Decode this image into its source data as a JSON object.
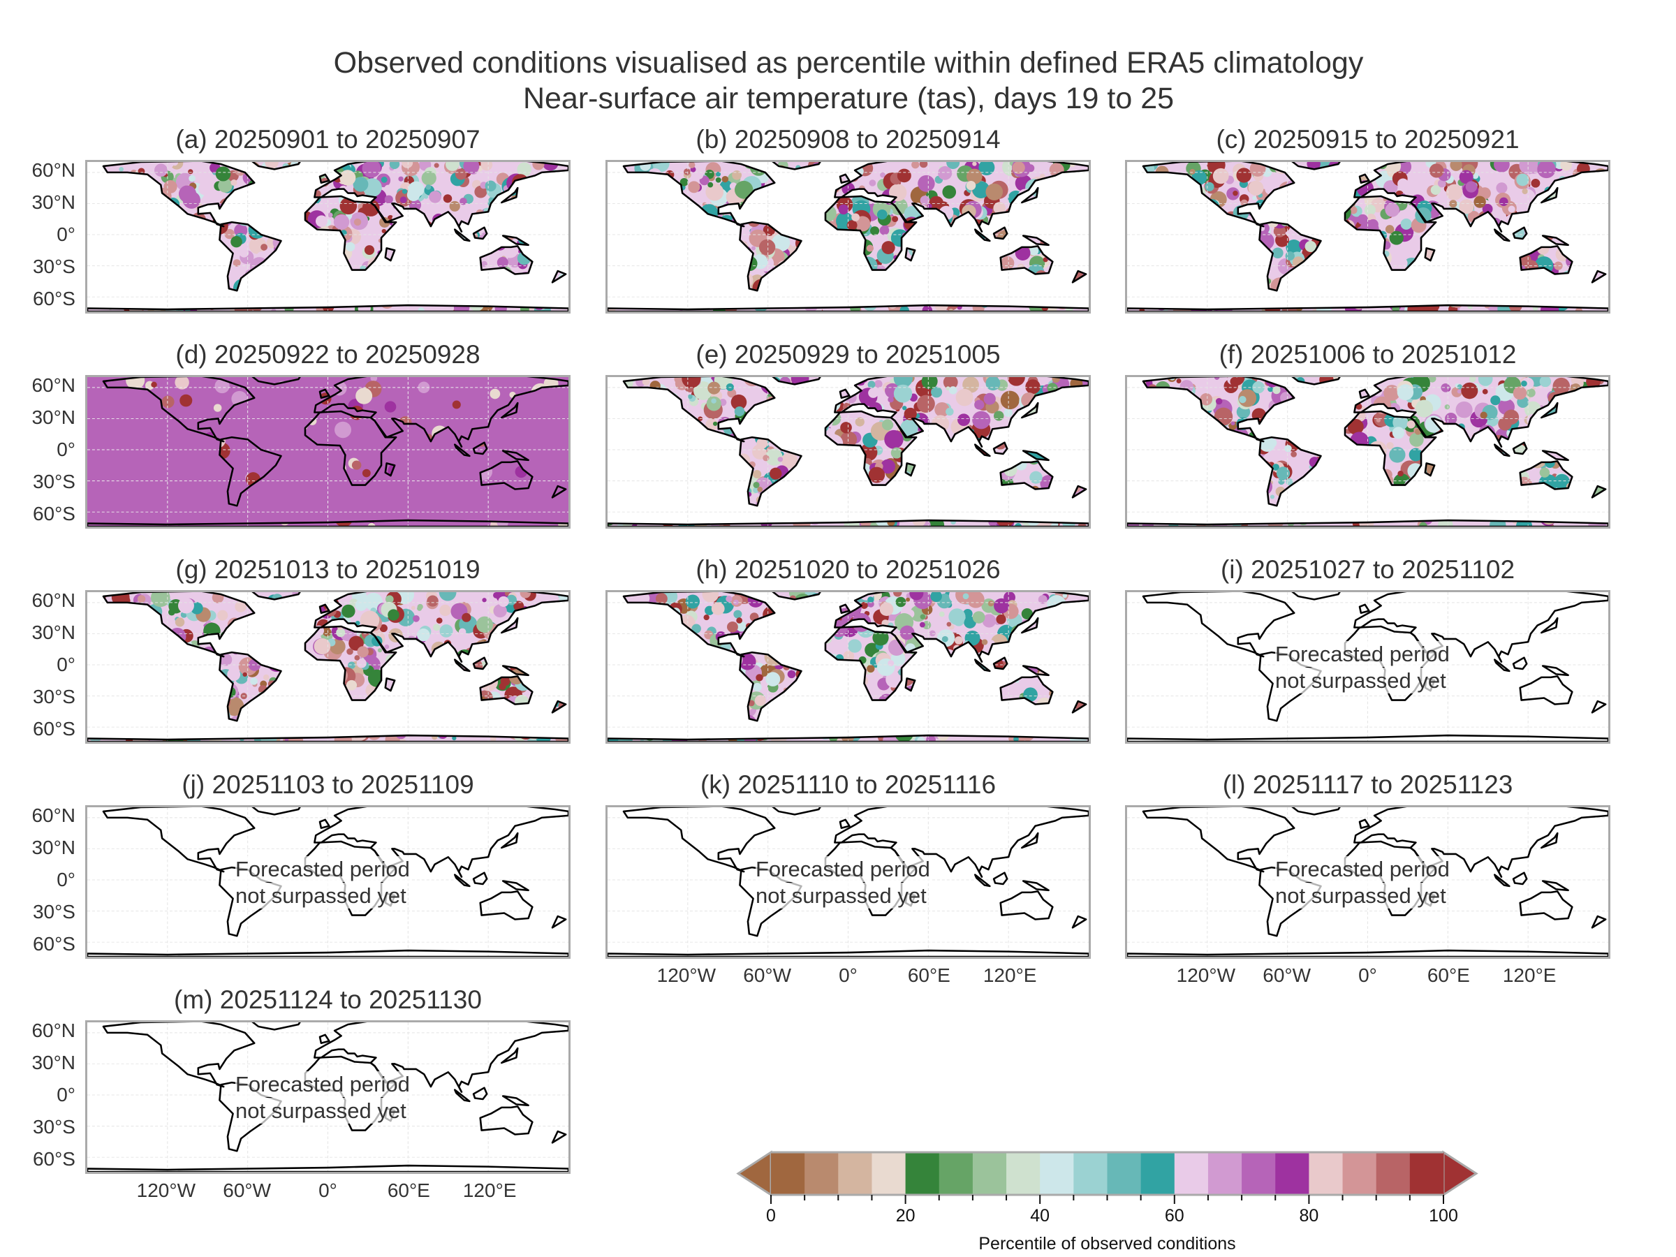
{
  "chart_data": {
    "type": "heatmap",
    "title": "Observed conditions visualised as percentile within defined ERA5 climatology",
    "subtitle": "Near-surface air temperature (tas), days 19 to 25",
    "lat_ticks": [
      {
        "value": 60,
        "label": "60°N"
      },
      {
        "value": 30,
        "label": "30°N"
      },
      {
        "value": 0,
        "label": "0°"
      },
      {
        "value": -30,
        "label": "30°S"
      },
      {
        "value": -60,
        "label": "60°S"
      }
    ],
    "lon_ticks": [
      {
        "value": -120,
        "label": "120°W"
      },
      {
        "value": -60,
        "label": "60°W"
      },
      {
        "value": 0,
        "label": "0°"
      },
      {
        "value": 60,
        "label": "60°E"
      },
      {
        "value": 120,
        "label": "120°E"
      }
    ],
    "panels": [
      {
        "label": "(a) 20250901 to 20250907",
        "status": "observed"
      },
      {
        "label": "(b) 20250908 to 20250914",
        "status": "observed"
      },
      {
        "label": "(c) 20250915 to 20250921",
        "status": "observed"
      },
      {
        "label": "(d) 20250922 to 20250928",
        "status": "observed"
      },
      {
        "label": "(e) 20250929 to 20251005",
        "status": "observed"
      },
      {
        "label": "(f) 20251006 to 20251012",
        "status": "observed"
      },
      {
        "label": "(g) 20251013 to 20251019",
        "status": "observed"
      },
      {
        "label": "(h) 20251020 to 20251026",
        "status": "observed"
      },
      {
        "label": "(i) 20251027 to 20251102",
        "status": "forecast"
      },
      {
        "label": "(j) 20251103 to 20251109",
        "status": "forecast"
      },
      {
        "label": "(k) 20251110 to 20251116",
        "status": "forecast"
      },
      {
        "label": "(l) 20251117 to 20251123",
        "status": "forecast"
      },
      {
        "label": "(m) 20251124 to 20251130",
        "status": "forecast"
      }
    ],
    "forecast_text": [
      "Forecasted period",
      "not surpassed yet"
    ],
    "colorbar": {
      "label": "Percentile of observed conditions",
      "range": [
        0,
        100
      ],
      "step": 5,
      "extend": "both",
      "tick_labels": [
        "0",
        "20",
        "40",
        "60",
        "80",
        "100"
      ],
      "colors": [
        "#a0673f",
        "#b98a6e",
        "#d4b5a0",
        "#e9dad0",
        "#35843a",
        "#66a466",
        "#9bc39b",
        "#cfe1cf",
        "#cde7ea",
        "#9bd2d2",
        "#67b8b7",
        "#31a3a3",
        "#e9cbe8",
        "#d19ad1",
        "#b664b8",
        "#9e32a0",
        "#e9c9cb",
        "#d39597",
        "#b86466",
        "#a03233"
      ]
    }
  }
}
